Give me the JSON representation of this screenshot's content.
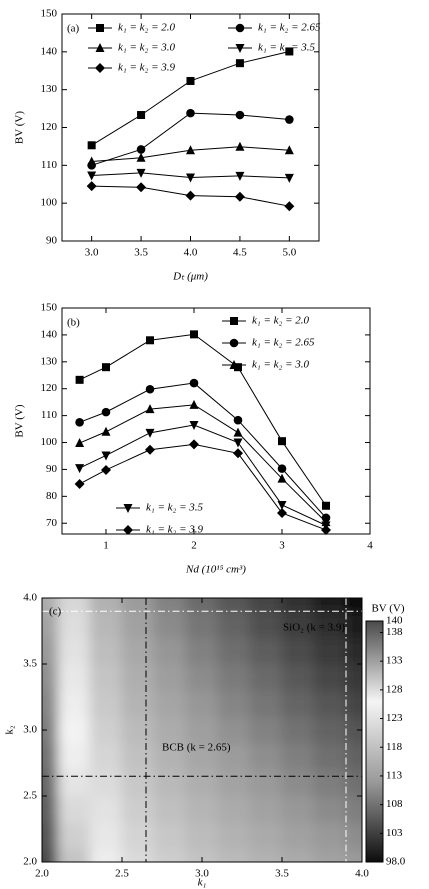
{
  "chart_data": [
    {
      "type": "line",
      "panel_label": "(a)",
      "x_label": "Dₜ (μm)",
      "y_label": "BV (V)",
      "x": [
        3.0,
        3.5,
        4.0,
        4.5,
        5.0
      ],
      "xlim": [
        2.7,
        5.3
      ],
      "xticks": [
        {
          "value": 3,
          "label": "3.0"
        },
        {
          "value": 3.5,
          "label": "3.5"
        },
        {
          "value": 4,
          "label": "4.0"
        },
        {
          "value": 4.5,
          "label": "4.5"
        },
        {
          "value": 5,
          "label": "5.0"
        }
      ],
      "ylim": [
        90,
        150
      ],
      "yticks": [
        90,
        100,
        110,
        120,
        130,
        140,
        150
      ],
      "series": [
        {
          "name": "k₁ = k₂ = 2.0",
          "color": "#000000",
          "marker": "square",
          "values": [
            115.3,
            123.3,
            132.3,
            137.0,
            140.1
          ]
        },
        {
          "name": "k₁ = k₂ = 2.65",
          "color": "#000000",
          "marker": "circle",
          "values": [
            110.0,
            114.2,
            123.8,
            123.3,
            122.1
          ]
        },
        {
          "name": "k₁ = k₂ = 3.0",
          "color": "#000000",
          "marker": "triangle-up",
          "values": [
            111.0,
            112.0,
            114.0,
            114.9,
            114.0
          ]
        },
        {
          "name": "k₁ = k₂ = 3.5",
          "color": "#000000",
          "marker": "triangle-down",
          "values": [
            107.3,
            108.0,
            106.8,
            107.2,
            106.7
          ]
        },
        {
          "name": "k₁ = k₂ = 3.9",
          "color": "#000000",
          "marker": "diamond",
          "values": [
            104.5,
            104.2,
            102.0,
            101.7,
            99.2
          ]
        }
      ]
    },
    {
      "type": "line",
      "panel_label": "(b)",
      "x_label": "Nd (10¹⁵ cm³)",
      "y_label": "BV (V)",
      "x": [
        0.7,
        1,
        1.5,
        2,
        2.5,
        3,
        3.5
      ],
      "xlim": [
        0.5,
        4
      ],
      "xticks": [
        1,
        2,
        3,
        4
      ],
      "ylim": [
        66,
        150
      ],
      "yticks": [
        70,
        80,
        90,
        100,
        110,
        120,
        130,
        140,
        150
      ],
      "series": [
        {
          "name": "k₁ = k₂ = 2.0",
          "color": "#000000",
          "marker": "square",
          "values": [
            123.3,
            128.0,
            138.0,
            140.2,
            128.0,
            100.5,
            76.5
          ]
        },
        {
          "name": "k₁ = k₂ = 2.65",
          "color": "#000000",
          "marker": "circle",
          "values": [
            107.5,
            111.3,
            119.8,
            122.1,
            108.3,
            90.3,
            72.0
          ]
        },
        {
          "name": "k₁ = k₂ = 3.0",
          "color": "#000000",
          "marker": "triangle-up",
          "values": [
            99.8,
            104.0,
            112.4,
            114.0,
            103.7,
            86.6,
            70.4
          ]
        },
        {
          "name": "k₁ = k₂ = 3.5",
          "color": "#000000",
          "marker": "triangle-down",
          "values": [
            90.5,
            95.2,
            103.6,
            106.5,
            100.0,
            76.8,
            69.2
          ]
        },
        {
          "name": "k₁ = k₂ = 3.9",
          "color": "#000000",
          "marker": "diamond",
          "values": [
            84.6,
            89.8,
            97.3,
            99.3,
            96.0,
            73.8,
            67.5
          ]
        }
      ]
    },
    {
      "type": "heatmap",
      "panel_label": "(c)",
      "x_label": "k₁",
      "y_label": "k₂",
      "colorbar_label": "BV (V)",
      "x": [
        2.0,
        2.2,
        2.4,
        2.6,
        2.8,
        3.0,
        3.2,
        3.4,
        3.6,
        3.8,
        4.0
      ],
      "y": [
        2.0,
        2.2,
        2.4,
        2.6,
        2.8,
        3.0,
        3.2,
        3.4,
        3.6,
        3.8,
        4.0
      ],
      "z": [
        [
          140.0,
          130.0,
          124.8,
          121.9,
          119.9,
          118.3,
          116.9,
          115.7,
          114.4,
          113.2,
          112.0
        ],
        [
          139.2,
          129.1,
          123.9,
          120.9,
          118.9,
          117.2,
          115.7,
          114.5,
          113.1,
          111.9,
          110.6
        ],
        [
          138.4,
          128.3,
          123.0,
          119.9,
          117.8,
          116.1,
          114.6,
          113.3,
          111.8,
          110.5,
          109.2
        ],
        [
          137.6,
          127.4,
          122.0,
          119.0,
          116.8,
          115.0,
          113.4,
          112.0,
          110.6,
          109.2,
          107.8
        ],
        [
          136.8,
          126.6,
          121.1,
          118.0,
          115.7,
          113.9,
          112.3,
          110.8,
          109.3,
          107.8,
          106.4
        ],
        [
          136.0,
          125.7,
          120.2,
          117.0,
          114.7,
          112.8,
          111.1,
          109.6,
          108.0,
          106.5,
          105.0
        ],
        [
          135.2,
          124.8,
          119.3,
          116.0,
          113.7,
          111.7,
          109.9,
          108.4,
          106.7,
          105.2,
          103.6
        ],
        [
          134.4,
          124.0,
          118.4,
          115.0,
          112.6,
          110.6,
          108.8,
          107.2,
          105.4,
          103.8,
          102.2
        ],
        [
          133.6,
          123.1,
          117.4,
          114.1,
          111.6,
          109.5,
          107.6,
          105.9,
          104.2,
          102.5,
          100.8
        ],
        [
          132.8,
          122.3,
          116.5,
          113.1,
          110.5,
          108.4,
          106.5,
          104.7,
          102.9,
          101.2,
          99.4
        ],
        [
          132.0,
          121.4,
          115.6,
          112.1,
          109.5,
          107.3,
          105.3,
          103.5,
          101.6,
          99.8,
          98.0
        ]
      ],
      "xlim": [
        2,
        4
      ],
      "xticks": [
        {
          "value": 2,
          "label": "2.0"
        },
        {
          "value": 2.5,
          "label": "2.5"
        },
        {
          "value": 3,
          "label": "3.0"
        },
        {
          "value": 3.5,
          "label": "3.5"
        },
        {
          "value": 4,
          "label": "4.0"
        }
      ],
      "ylim": [
        2,
        4
      ],
      "yticks": [
        {
          "value": 2,
          "label": "2.0"
        },
        {
          "value": 2.5,
          "label": "2.5"
        },
        {
          "value": 3,
          "label": "3.0"
        },
        {
          "value": 3.5,
          "label": "3.5"
        },
        {
          "value": 4,
          "label": "4.0"
        }
      ],
      "zlim": [
        98,
        140
      ],
      "zticks": [
        {
          "value": 98,
          "label": "98.0"
        },
        103,
        108,
        113,
        118,
        123,
        128,
        133,
        138,
        140
      ],
      "colors": [
        "#0d0d0d",
        "#9a9a9a",
        "#f5f5f5",
        "#4a4a4a"
      ],
      "ref_lines": [
        2.65,
        3.9
      ],
      "ref_colors": [
        "#000000",
        "#ffffff"
      ],
      "annotations": [
        "BCB (k = 2.65)",
        "SiO₂ (k = 3.9)"
      ]
    }
  ]
}
